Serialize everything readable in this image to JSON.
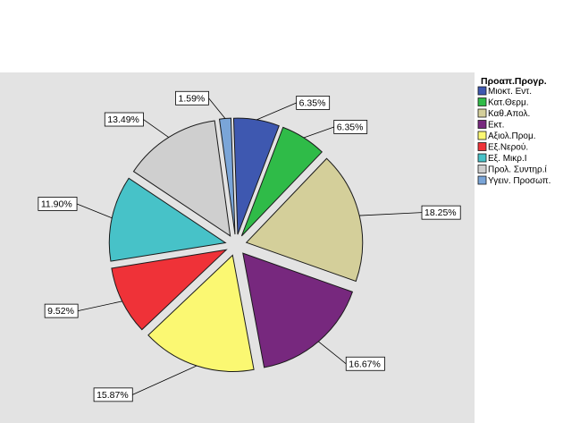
{
  "chart_data": {
    "type": "pie",
    "title": "",
    "legend": {
      "title": "Προαπ.Προγρ.",
      "position": "right"
    },
    "exploded": true,
    "slices": [
      {
        "name": "Μιοκτ. Εντ.",
        "value": 6.35,
        "label": "6.35%",
        "color": "#3e58b0"
      },
      {
        "name": "Κατ.Θερμ.",
        "value": 6.35,
        "label": "6.35%",
        "color": "#2fbb48"
      },
      {
        "name": "Καθ.Απολ.",
        "value": 18.25,
        "label": "18.25%",
        "color": "#d4cf9a"
      },
      {
        "name": "Εκτ.",
        "value": 16.67,
        "label": "16.67%",
        "color": "#77287e"
      },
      {
        "name": "Αξιολ.Προμ.",
        "value": 15.87,
        "label": "15.87%",
        "color": "#fbf872"
      },
      {
        "name": "Εξ.Νερού.",
        "value": 9.52,
        "label": "9.52%",
        "color": "#ef3238"
      },
      {
        "name": "Εξ. Μικρ.Ι",
        "value": 11.9,
        "label": "11.90%",
        "color": "#47c2c8"
      },
      {
        "name": "Προλ. Συντηρ.ί",
        "value": 13.49,
        "label": "13.49%",
        "color": "#cfcfcf"
      },
      {
        "name": "Υγειν. Προσωπ.",
        "value": 1.59,
        "label": "1.59%",
        "color": "#7aa5d8"
      }
    ]
  }
}
